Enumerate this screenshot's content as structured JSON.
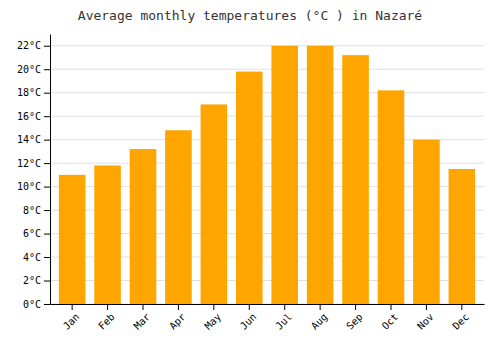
{
  "chart_data": {
    "type": "bar",
    "title": "Average monthly temperatures (°C ) in Nazaré",
    "categories": [
      "Jan",
      "Feb",
      "Mar",
      "Apr",
      "May",
      "Jun",
      "Jul",
      "Aug",
      "Sep",
      "Oct",
      "Nov",
      "Dec"
    ],
    "values": [
      11.0,
      11.8,
      13.2,
      14.8,
      17.0,
      19.8,
      22.0,
      22.0,
      21.2,
      18.2,
      14.0,
      11.5
    ],
    "color": "#FFA500",
    "ylim": [
      0,
      23
    ],
    "yticks": [
      {
        "value": 0,
        "label": "0°C"
      },
      {
        "value": 2,
        "label": "2°C"
      },
      {
        "value": 4,
        "label": "4°C"
      },
      {
        "value": 6,
        "label": "6°C"
      },
      {
        "value": 8,
        "label": "8°C"
      },
      {
        "value": 10,
        "label": "10°C"
      },
      {
        "value": 12,
        "label": "12°C"
      },
      {
        "value": 14,
        "label": "14°C"
      },
      {
        "value": 16,
        "label": "16°C"
      },
      {
        "value": 18,
        "label": "18°C"
      },
      {
        "value": 20,
        "label": "20°C"
      },
      {
        "value": 22,
        "label": "22°C"
      }
    ],
    "grid": true
  }
}
